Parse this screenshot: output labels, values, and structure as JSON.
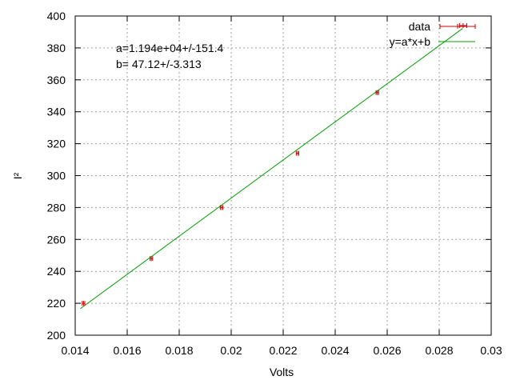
{
  "chart_data": {
    "type": "scatter",
    "xlabel": "Volts",
    "ylabel": "I²",
    "xlim": [
      0.014,
      0.03
    ],
    "ylim": [
      200,
      400
    ],
    "xticks": [
      0.014,
      0.016,
      0.018,
      0.02,
      0.022,
      0.024,
      0.026,
      0.028,
      0.03
    ],
    "xtick_labels": [
      "0.014",
      "0.016",
      "0.018",
      "0.02",
      "0.022",
      "0.024",
      "0.026",
      "0.028",
      "0.03"
    ],
    "yticks": [
      200,
      220,
      240,
      260,
      280,
      300,
      320,
      340,
      360,
      380,
      400
    ],
    "ytick_labels": [
      "200",
      "220",
      "240",
      "260",
      "280",
      "300",
      "320",
      "340",
      "360",
      "380",
      "400"
    ],
    "grid": true,
    "legend_position": "top-right",
    "annotations": [
      "a=1.194e+04+/-151.4",
      "b= 47.12+/-3.313"
    ],
    "series": [
      {
        "name": "data",
        "kind": "points-with-xerror",
        "color": "#cc0000",
        "x": [
          0.01432,
          0.01693,
          0.01963,
          0.02255,
          0.02562,
          0.02892
        ],
        "y": [
          220,
          248,
          280,
          314,
          352,
          394
        ],
        "xerr": [
          5e-05,
          5e-05,
          5e-05,
          5e-05,
          5e-05,
          0.00014
        ]
      },
      {
        "name": "y=a*x+b",
        "kind": "line",
        "color": "#00a000",
        "a": 11940,
        "b": 47.12,
        "x_range": [
          0.0142,
          0.0289
        ]
      }
    ]
  }
}
